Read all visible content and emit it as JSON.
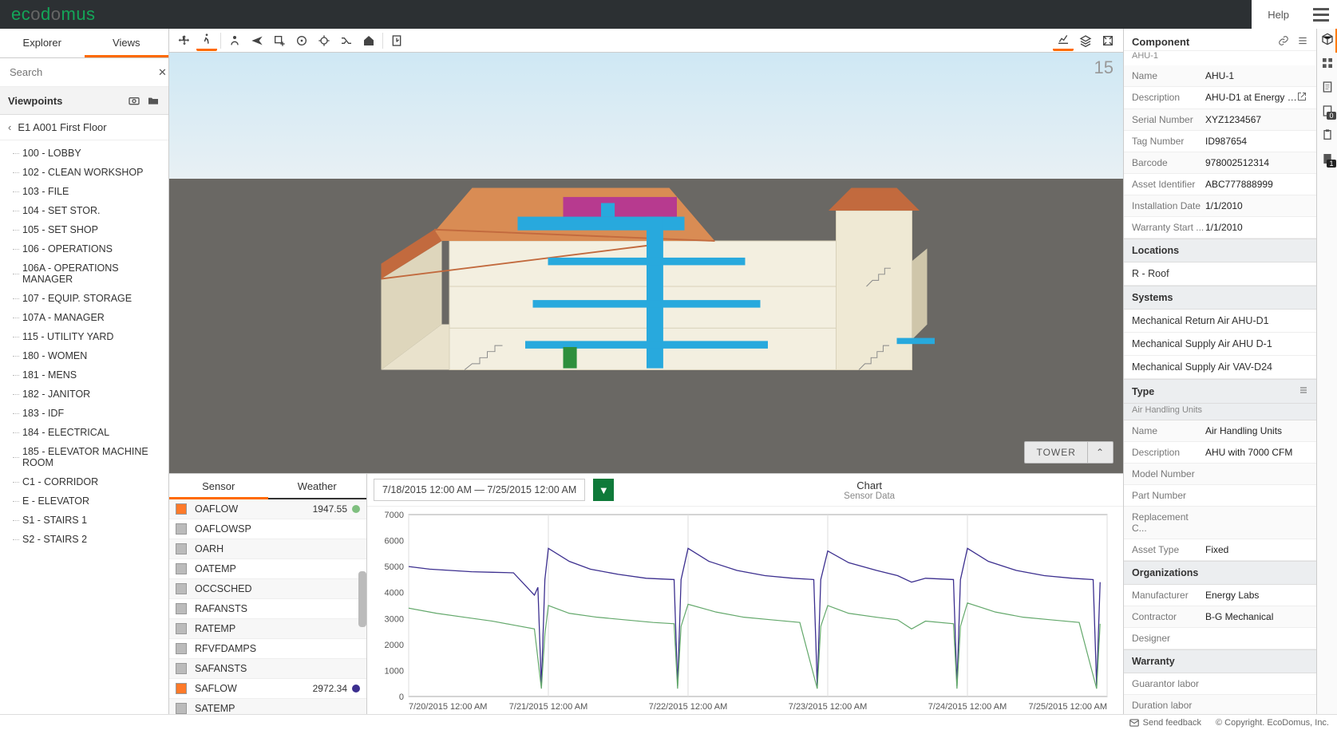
{
  "brand": "ecodomus",
  "topbar": {
    "help": "Help"
  },
  "left": {
    "tabs": {
      "explorer": "Explorer",
      "views": "Views"
    },
    "active_tab": "views",
    "search_placeholder": "Search",
    "viewpoints_label": "Viewpoints",
    "breadcrumb": "E1 A001 First Floor",
    "tree": [
      "100 - LOBBY",
      "102 - CLEAN WORKSHOP",
      "103 - FILE",
      "104 - SET STOR.",
      "105 - SET SHOP",
      "106 - OPERATIONS",
      "106A - OPERATIONS MANAGER",
      "107 - EQUIP. STORAGE",
      "107A - MANAGER",
      "115 - UTILITY YARD",
      "180 - WOMEN",
      "181 - MENS",
      "182 - JANITOR",
      "183 - IDF",
      "184 - ELECTRICAL",
      "185 - ELEVATOR MACHINE ROOM",
      "C1 - CORRIDOR",
      "E - ELEVATOR",
      "S1 - STAIRS 1",
      "S2 - STAIRS 2"
    ]
  },
  "viewer": {
    "fps": "15",
    "badge": "TOWER",
    "colors": {
      "sky_top": "#cfe8f4",
      "sky_bottom": "#e8f0f4",
      "ground": "#6a6864",
      "roof": "#c26a3e",
      "roof2": "#d98c54",
      "wall_outer": "#e9e2cc",
      "wall_inner": "#f3efe0",
      "floor": "#cfa46a",
      "hvac_duct": "#28a9dd",
      "hvac_accent": "#b73a8f",
      "green_unit": "#2e8f3d",
      "stairs": "#888"
    }
  },
  "sensor": {
    "tabs": {
      "sensor": "Sensor",
      "weather": "Weather"
    },
    "active_tab": "sensor",
    "items": [
      {
        "name": "OAFLOW",
        "color": "#ff7a2a",
        "value": "1947.55",
        "dot": "#7fbf7f"
      },
      {
        "name": "OAFLOWSP",
        "color": "#bbbbbb"
      },
      {
        "name": "OARH",
        "color": "#bbbbbb"
      },
      {
        "name": "OATEMP",
        "color": "#bbbbbb"
      },
      {
        "name": "OCCSCHED",
        "color": "#bbbbbb"
      },
      {
        "name": "RAFANSTS",
        "color": "#bbbbbb"
      },
      {
        "name": "RATEMP",
        "color": "#bbbbbb"
      },
      {
        "name": "RFVFDAMPS",
        "color": "#bbbbbb"
      },
      {
        "name": "SAFANSTS",
        "color": "#bbbbbb"
      },
      {
        "name": "SAFLOW",
        "color": "#ff7a2a",
        "value": "2972.34",
        "dot": "#3c2f8f"
      },
      {
        "name": "SATEMP",
        "color": "#bbbbbb"
      }
    ]
  },
  "chart": {
    "date_range": "7/18/2015 12:00 AM — 7/25/2015 12:00 AM",
    "title": "Chart",
    "subtitle": "Sensor Data",
    "y": {
      "min": 0,
      "max": 7000,
      "step": 1000
    },
    "x_labels": [
      "7/20/2015 12:00 AM",
      "7/21/2015 12:00 AM",
      "7/22/2015 12:00 AM",
      "7/23/2015 12:00 AM",
      "7/24/2015 12:00 AM",
      "7/25/2015 12:00 AM"
    ],
    "series": [
      {
        "name": "SAFLOW",
        "color": "#3c2f8f",
        "width": 1.3,
        "points": [
          [
            0.0,
            5000
          ],
          [
            0.03,
            4900
          ],
          [
            0.06,
            4850
          ],
          [
            0.09,
            4800
          ],
          [
            0.12,
            4780
          ],
          [
            0.15,
            4760
          ],
          [
            0.18,
            3900
          ],
          [
            0.185,
            4200
          ],
          [
            0.19,
            400
          ],
          [
            0.195,
            4500
          ],
          [
            0.2,
            5700
          ],
          [
            0.23,
            5200
          ],
          [
            0.26,
            4900
          ],
          [
            0.3,
            4700
          ],
          [
            0.34,
            4550
          ],
          [
            0.38,
            4500
          ],
          [
            0.385,
            400
          ],
          [
            0.39,
            4500
          ],
          [
            0.4,
            5700
          ],
          [
            0.43,
            5200
          ],
          [
            0.47,
            4850
          ],
          [
            0.51,
            4650
          ],
          [
            0.55,
            4550
          ],
          [
            0.58,
            4500
          ],
          [
            0.585,
            400
          ],
          [
            0.59,
            4500
          ],
          [
            0.6,
            5600
          ],
          [
            0.63,
            5150
          ],
          [
            0.67,
            4850
          ],
          [
            0.7,
            4650
          ],
          [
            0.72,
            4400
          ],
          [
            0.74,
            4550
          ],
          [
            0.78,
            4500
          ],
          [
            0.785,
            400
          ],
          [
            0.79,
            4500
          ],
          [
            0.8,
            5700
          ],
          [
            0.83,
            5200
          ],
          [
            0.87,
            4850
          ],
          [
            0.91,
            4650
          ],
          [
            0.95,
            4550
          ],
          [
            0.98,
            4500
          ],
          [
            0.985,
            400
          ],
          [
            0.99,
            4400
          ]
        ]
      },
      {
        "name": "OAFLOW",
        "color": "#63a86b",
        "width": 1.2,
        "points": [
          [
            0.0,
            3400
          ],
          [
            0.04,
            3200
          ],
          [
            0.08,
            3050
          ],
          [
            0.12,
            2900
          ],
          [
            0.15,
            2750
          ],
          [
            0.18,
            2600
          ],
          [
            0.19,
            300
          ],
          [
            0.195,
            2400
          ],
          [
            0.2,
            3500
          ],
          [
            0.23,
            3200
          ],
          [
            0.27,
            3050
          ],
          [
            0.31,
            2950
          ],
          [
            0.35,
            2850
          ],
          [
            0.38,
            2800
          ],
          [
            0.385,
            300
          ],
          [
            0.39,
            2700
          ],
          [
            0.4,
            3550
          ],
          [
            0.44,
            3250
          ],
          [
            0.48,
            3050
          ],
          [
            0.52,
            2950
          ],
          [
            0.56,
            2850
          ],
          [
            0.585,
            300
          ],
          [
            0.59,
            2700
          ],
          [
            0.6,
            3500
          ],
          [
            0.63,
            3200
          ],
          [
            0.67,
            3050
          ],
          [
            0.7,
            2950
          ],
          [
            0.72,
            2600
          ],
          [
            0.74,
            2900
          ],
          [
            0.78,
            2800
          ],
          [
            0.785,
            300
          ],
          [
            0.79,
            2700
          ],
          [
            0.8,
            3600
          ],
          [
            0.84,
            3250
          ],
          [
            0.88,
            3050
          ],
          [
            0.92,
            2950
          ],
          [
            0.96,
            2850
          ],
          [
            0.985,
            300
          ],
          [
            0.99,
            2800
          ]
        ]
      }
    ],
    "background": "#ffffff",
    "grid_color": "#dddddd",
    "axis_color": "#aaaaaa",
    "label_fontsize": 11
  },
  "component": {
    "title": "Component",
    "subtitle": "AHU-1",
    "props": [
      {
        "k": "Name",
        "v": "AHU-1"
      },
      {
        "k": "Description",
        "v": "AHU-D1 at Energy Labs...",
        "link": true
      },
      {
        "k": "Serial Number",
        "v": "XYZ1234567"
      },
      {
        "k": "Tag Number",
        "v": "ID987654"
      },
      {
        "k": "Barcode",
        "v": "978002512314"
      },
      {
        "k": "Asset Identifier",
        "v": "ABC777888999"
      },
      {
        "k": "Installation Date",
        "v": "1/1/2010"
      },
      {
        "k": "Warranty Start ...",
        "v": "1/1/2010"
      }
    ],
    "locations_hdr": "Locations",
    "locations": [
      "R - Roof"
    ],
    "systems_hdr": "Systems",
    "systems": [
      "Mechanical Return Air AHU-D1",
      "Mechanical Supply Air AHU D-1",
      "Mechanical Supply Air VAV-D24"
    ],
    "type_hdr": "Type",
    "type_sub": "Air Handling Units",
    "type_props": [
      {
        "k": "Name",
        "v": "Air Handling Units"
      },
      {
        "k": "Description",
        "v": "AHU with 7000 CFM"
      },
      {
        "k": "Model Number",
        "v": ""
      },
      {
        "k": "Part Number",
        "v": ""
      },
      {
        "k": "Replacement C...",
        "v": ""
      },
      {
        "k": "Asset Type",
        "v": "Fixed"
      }
    ],
    "orgs_hdr": "Organizations",
    "orgs": [
      {
        "k": "Manufacturer",
        "v": "Energy Labs"
      },
      {
        "k": "Contractor",
        "v": "B-G Mechanical"
      },
      {
        "k": "Designer",
        "v": ""
      }
    ],
    "warranty_hdr": "Warranty",
    "warranty": [
      {
        "k": "Guarantor labor",
        "v": ""
      },
      {
        "k": "Duration labor",
        "v": ""
      }
    ]
  },
  "footer": {
    "feedback": "Send feedback",
    "copyright": "© Copyright. EcoDomus, Inc."
  }
}
